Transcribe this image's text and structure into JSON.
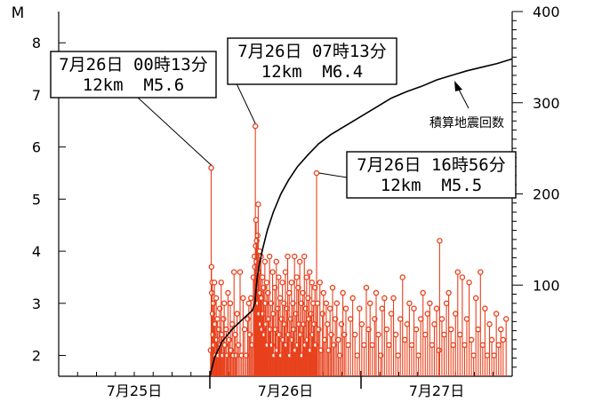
{
  "chart_data": {
    "type": "scatter",
    "left_axis_label": "M",
    "y_left_ticks": [
      2,
      3,
      4,
      5,
      6,
      7,
      8
    ],
    "ylim_left": [
      1.6,
      8.6
    ],
    "y_right_ticks": [
      100,
      200,
      300,
      400
    ],
    "ylim_right": [
      0,
      400
    ],
    "x_ticks": [
      {
        "label": "7月25日",
        "pos": 0.5
      },
      {
        "label": "7月26日",
        "pos": 1.5
      },
      {
        "label": "7月27日",
        "pos": 2.5
      }
    ],
    "xlim_days": [
      0,
      3
    ],
    "cumulative_label": "積算地震回数",
    "colors": {
      "quake": "#e8401c",
      "cumulative": "#000000"
    },
    "annotations": [
      {
        "line1": "7月26日 00時13分",
        "line2": "12km  M5.6",
        "t": 1.009,
        "mag": 5.6
      },
      {
        "line1": "7月26日 07時13分",
        "line2": "12km  M6.4",
        "t": 1.301,
        "mag": 6.4
      },
      {
        "line1": "7月26日 16時56分",
        "line2": "12km  M5.5",
        "t": 1.706,
        "mag": 5.5
      }
    ],
    "events": [
      [
        1.005,
        2.1
      ],
      [
        1.009,
        5.6
      ],
      [
        1.011,
        3.7
      ],
      [
        1.013,
        3.2
      ],
      [
        1.016,
        3.4
      ],
      [
        1.018,
        2.8
      ],
      [
        1.021,
        2.4
      ],
      [
        1.024,
        3.0
      ],
      [
        1.027,
        2.2
      ],
      [
        1.03,
        3.4
      ],
      [
        1.034,
        2.6
      ],
      [
        1.038,
        2.0
      ],
      [
        1.042,
        3.1
      ],
      [
        1.046,
        2.3
      ],
      [
        1.05,
        2.7
      ],
      [
        1.055,
        2.0
      ],
      [
        1.06,
        2.5
      ],
      [
        1.065,
        2.9
      ],
      [
        1.07,
        2.2
      ],
      [
        1.075,
        3.4
      ],
      [
        1.08,
        2.4
      ],
      [
        1.085,
        2.0
      ],
      [
        1.09,
        2.7
      ],
      [
        1.095,
        3.0
      ],
      [
        1.1,
        2.2
      ],
      [
        1.108,
        2.5
      ],
      [
        1.115,
        2.0
      ],
      [
        1.12,
        3.2
      ],
      [
        1.128,
        2.3
      ],
      [
        1.135,
        3.0
      ],
      [
        1.14,
        2.1
      ],
      [
        1.148,
        2.6
      ],
      [
        1.155,
        2.0
      ],
      [
        1.16,
        3.6
      ],
      [
        1.168,
        2.4
      ],
      [
        1.175,
        2.0
      ],
      [
        1.18,
        2.8
      ],
      [
        1.19,
        2.2
      ],
      [
        1.2,
        3.6
      ],
      [
        1.21,
        2.0
      ],
      [
        1.22,
        3.1
      ],
      [
        1.23,
        2.5
      ],
      [
        1.24,
        2.0
      ],
      [
        1.25,
        2.7
      ],
      [
        1.258,
        3.0
      ],
      [
        1.265,
        2.4
      ],
      [
        1.272,
        3.1
      ],
      [
        1.28,
        2.2
      ],
      [
        1.288,
        3.5
      ],
      [
        1.295,
        3.9
      ],
      [
        1.298,
        3.7
      ],
      [
        1.301,
        6.4
      ],
      [
        1.303,
        4.1
      ],
      [
        1.306,
        4.6
      ],
      [
        1.308,
        3.8
      ],
      [
        1.31,
        4.2
      ],
      [
        1.313,
        3.3
      ],
      [
        1.316,
        4.3
      ],
      [
        1.318,
        3.0
      ],
      [
        1.32,
        4.9
      ],
      [
        1.323,
        3.6
      ],
      [
        1.326,
        2.8
      ],
      [
        1.329,
        4.0
      ],
      [
        1.332,
        3.2
      ],
      [
        1.335,
        2.6
      ],
      [
        1.338,
        3.9
      ],
      [
        1.342,
        3.1
      ],
      [
        1.345,
        2.5
      ],
      [
        1.348,
        3.5
      ],
      [
        1.352,
        2.8
      ],
      [
        1.356,
        3.3
      ],
      [
        1.36,
        2.4
      ],
      [
        1.364,
        3.8
      ],
      [
        1.368,
        3.0
      ],
      [
        1.372,
        2.6
      ],
      [
        1.376,
        3.4
      ],
      [
        1.38,
        2.2
      ],
      [
        1.385,
        3.2
      ],
      [
        1.39,
        2.7
      ],
      [
        1.395,
        3.9
      ],
      [
        1.4,
        2.5
      ],
      [
        1.405,
        3.0
      ],
      [
        1.41,
        2.2
      ],
      [
        1.415,
        3.6
      ],
      [
        1.42,
        2.8
      ],
      [
        1.425,
        2.0
      ],
      [
        1.43,
        3.3
      ],
      [
        1.435,
        2.5
      ],
      [
        1.44,
        3.8
      ],
      [
        1.445,
        2.1
      ],
      [
        1.45,
        2.9
      ],
      [
        1.455,
        3.5
      ],
      [
        1.46,
        2.4
      ],
      [
        1.465,
        3.1
      ],
      [
        1.47,
        2.0
      ],
      [
        1.475,
        2.7
      ],
      [
        1.48,
        3.4
      ],
      [
        1.485,
        2.3
      ],
      [
        1.49,
        3.0
      ],
      [
        1.495,
        2.6
      ],
      [
        1.5,
        3.6
      ],
      [
        1.505,
        2.2
      ],
      [
        1.51,
        2.9
      ],
      [
        1.515,
        3.9
      ],
      [
        1.52,
        2.4
      ],
      [
        1.525,
        3.2
      ],
      [
        1.53,
        2.0
      ],
      [
        1.535,
        2.7
      ],
      [
        1.54,
        3.4
      ],
      [
        1.545,
        2.3
      ],
      [
        1.55,
        3.0
      ],
      [
        1.555,
        2.5
      ],
      [
        1.56,
        3.9
      ],
      [
        1.565,
        2.1
      ],
      [
        1.57,
        2.8
      ],
      [
        1.575,
        3.5
      ],
      [
        1.58,
        2.2
      ],
      [
        1.585,
        3.3
      ],
      [
        1.59,
        2.6
      ],
      [
        1.595,
        3.8
      ],
      [
        1.6,
        2.4
      ],
      [
        1.605,
        3.0
      ],
      [
        1.61,
        2.0
      ],
      [
        1.615,
        3.2
      ],
      [
        1.62,
        2.6
      ],
      [
        1.625,
        3.9
      ],
      [
        1.63,
        2.2
      ],
      [
        1.635,
        2.9
      ],
      [
        1.64,
        3.5
      ],
      [
        1.645,
        2.3
      ],
      [
        1.65,
        3.1
      ],
      [
        1.655,
        2.7
      ],
      [
        1.66,
        3.6
      ],
      [
        1.665,
        2.1
      ],
      [
        1.67,
        2.8
      ],
      [
        1.675,
        3.4
      ],
      [
        1.68,
        2.4
      ],
      [
        1.685,
        3.0
      ],
      [
        1.69,
        2.6
      ],
      [
        1.695,
        3.3
      ],
      [
        1.7,
        2.2
      ],
      [
        1.706,
        5.5
      ],
      [
        1.712,
        3.0
      ],
      [
        1.72,
        2.5
      ],
      [
        1.728,
        3.4
      ],
      [
        1.736,
        2.1
      ],
      [
        1.745,
        2.8
      ],
      [
        1.752,
        3.2
      ],
      [
        1.76,
        2.3
      ],
      [
        1.77,
        3.0
      ],
      [
        1.778,
        2.6
      ],
      [
        1.786,
        2.1
      ],
      [
        1.795,
        2.9
      ],
      [
        1.803,
        2.4
      ],
      [
        1.812,
        3.3
      ],
      [
        1.82,
        2.2
      ],
      [
        1.83,
        2.7
      ],
      [
        1.84,
        3.0
      ],
      [
        1.85,
        2.3
      ],
      [
        1.86,
        2.0
      ],
      [
        1.87,
        2.6
      ],
      [
        1.88,
        3.2
      ],
      [
        1.89,
        2.4
      ],
      [
        1.9,
        2.9
      ],
      [
        1.915,
        2.2
      ],
      [
        1.93,
        2.7
      ],
      [
        1.945,
        3.1
      ],
      [
        1.96,
        2.4
      ],
      [
        1.975,
        2.0
      ],
      [
        1.99,
        2.9
      ],
      [
        2.005,
        2.6
      ],
      [
        2.02,
        2.2
      ],
      [
        2.035,
        3.3
      ],
      [
        2.05,
        2.5
      ],
      [
        2.06,
        3.0
      ],
      [
        2.075,
        2.2
      ],
      [
        2.09,
        2.7
      ],
      [
        2.1,
        3.2
      ],
      [
        2.115,
        2.4
      ],
      [
        2.13,
        2.0
      ],
      [
        2.14,
        2.9
      ],
      [
        2.155,
        3.1
      ],
      [
        2.17,
        2.5
      ],
      [
        2.185,
        2.2
      ],
      [
        2.2,
        2.8
      ],
      [
        2.215,
        3.1
      ],
      [
        2.23,
        2.4
      ],
      [
        2.245,
        2.0
      ],
      [
        2.26,
        2.7
      ],
      [
        2.275,
        3.5
      ],
      [
        2.29,
        2.3
      ],
      [
        2.305,
        2.6
      ],
      [
        2.32,
        3.0
      ],
      [
        2.335,
        2.2
      ],
      [
        2.35,
        2.9
      ],
      [
        2.365,
        2.5
      ],
      [
        2.38,
        2.0
      ],
      [
        2.395,
        2.7
      ],
      [
        2.41,
        3.2
      ],
      [
        2.425,
        2.4
      ],
      [
        2.44,
        2.8
      ],
      [
        2.455,
        3.0
      ],
      [
        2.47,
        2.2
      ],
      [
        2.485,
        2.6
      ],
      [
        2.5,
        2.9
      ],
      [
        2.515,
        2.1
      ],
      [
        2.52,
        4.2
      ],
      [
        2.535,
        2.7
      ],
      [
        2.55,
        2.4
      ],
      [
        2.565,
        3.0
      ],
      [
        2.58,
        3.2
      ],
      [
        2.595,
        2.5
      ],
      [
        2.61,
        2.2
      ],
      [
        2.625,
        2.8
      ],
      [
        2.64,
        3.6
      ],
      [
        2.655,
        2.4
      ],
      [
        2.67,
        3.5
      ],
      [
        2.685,
        2.2
      ],
      [
        2.7,
        2.7
      ],
      [
        2.715,
        3.4
      ],
      [
        2.73,
        2.3
      ],
      [
        2.745,
        2.0
      ],
      [
        2.76,
        3.1
      ],
      [
        2.775,
        2.5
      ],
      [
        2.79,
        3.6
      ],
      [
        2.805,
        2.2
      ],
      [
        2.82,
        2.9
      ],
      [
        2.835,
        2.0
      ],
      [
        2.85,
        2.6
      ],
      [
        2.865,
        2.3
      ],
      [
        2.88,
        2.0
      ],
      [
        2.895,
        2.8
      ],
      [
        2.91,
        2.2
      ],
      [
        2.925,
        2.5
      ],
      [
        2.94,
        2.3
      ],
      [
        2.96,
        2.7
      ]
    ],
    "cumulative": [
      [
        1.0,
        0
      ],
      [
        1.03,
        20
      ],
      [
        1.08,
        38
      ],
      [
        1.15,
        52
      ],
      [
        1.22,
        63
      ],
      [
        1.28,
        72
      ],
      [
        1.298,
        80
      ],
      [
        1.305,
        95
      ],
      [
        1.315,
        110
      ],
      [
        1.33,
        125
      ],
      [
        1.35,
        140
      ],
      [
        1.38,
        160
      ],
      [
        1.42,
        180
      ],
      [
        1.47,
        200
      ],
      [
        1.52,
        215
      ],
      [
        1.58,
        230
      ],
      [
        1.65,
        243
      ],
      [
        1.72,
        255
      ],
      [
        1.8,
        265
      ],
      [
        1.9,
        275
      ],
      [
        2.0,
        285
      ],
      [
        2.1,
        295
      ],
      [
        2.2,
        305
      ],
      [
        2.3,
        312
      ],
      [
        2.4,
        318
      ],
      [
        2.5,
        325
      ],
      [
        2.6,
        330
      ],
      [
        2.7,
        335
      ],
      [
        2.8,
        339
      ],
      [
        2.9,
        343
      ],
      [
        3.0,
        348
      ]
    ]
  }
}
